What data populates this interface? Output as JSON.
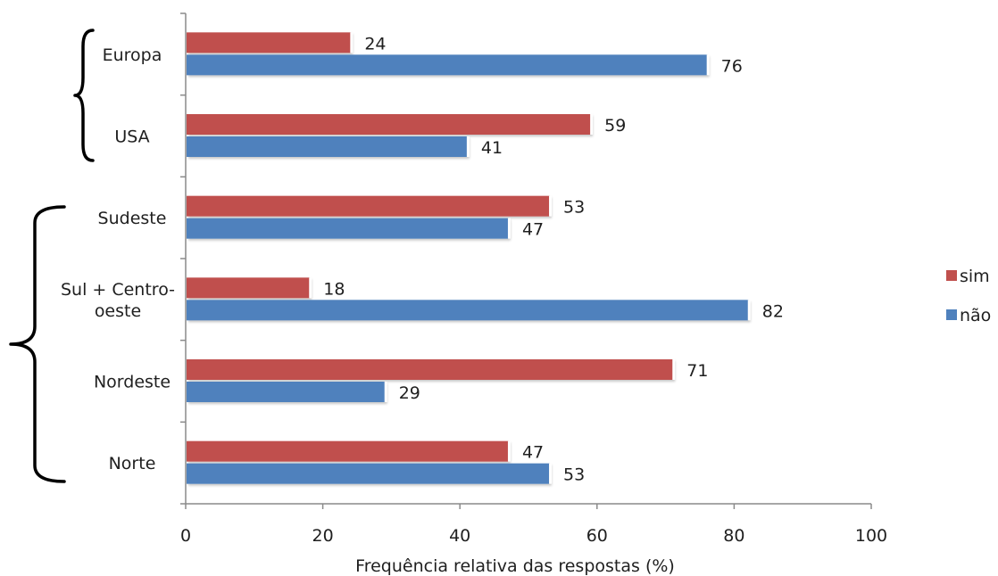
{
  "chart_data": {
    "type": "bar",
    "orientation": "horizontal",
    "categories": [
      "Europa",
      "USA",
      "Sudeste",
      "Sul + Centro-oeste",
      "Nordeste",
      "Norte"
    ],
    "category_lines": [
      [
        "Europa"
      ],
      [
        "USA"
      ],
      [
        "Sudeste"
      ],
      [
        "Sul + Centro-",
        "oeste"
      ],
      [
        "Nordeste"
      ],
      [
        "Norte"
      ]
    ],
    "series": [
      {
        "name": "sim",
        "color": "#c0504d",
        "values": [
          24,
          59,
          53,
          18,
          71,
          47
        ]
      },
      {
        "name": "não",
        "color": "#4f81bd",
        "values": [
          76,
          41,
          47,
          82,
          29,
          53
        ]
      }
    ],
    "xlabel": "Frequência relativa das respostas (%)",
    "xlim": [
      0,
      100
    ],
    "xticks": [
      "0",
      "20",
      "40",
      "60",
      "80",
      "100"
    ],
    "data_labels": true,
    "legend_position": "right",
    "grid": false,
    "groups": [
      {
        "categories": [
          "Europa",
          "USA"
        ]
      },
      {
        "categories": [
          "Sudeste",
          "Sul + Centro-oeste",
          "Nordeste",
          "Norte"
        ]
      }
    ]
  }
}
